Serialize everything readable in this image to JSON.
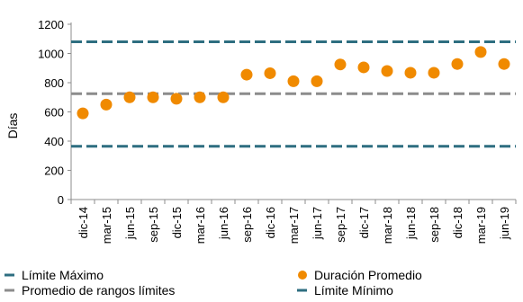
{
  "chart_data": {
    "type": "scatter",
    "title": "",
    "ylabel": "Días",
    "xlabel": "",
    "ylim": [
      0,
      1200
    ],
    "yticks": [
      "0",
      "200",
      "400",
      "600",
      "800",
      "1000",
      "1200"
    ],
    "grid": false,
    "categories": [
      "dic-14",
      "mar-15",
      "jun-15",
      "sep-15",
      "dic-15",
      "mar-16",
      "jun-16",
      "sep-16",
      "dic-16",
      "mar-17",
      "jun-17",
      "sep-17",
      "dic-17",
      "mar-18",
      "jun-18",
      "sep-18",
      "dic-18",
      "mar-19",
      "jun-19"
    ],
    "series": [
      {
        "name": "Duración Promedio",
        "color": "#F08A00",
        "values": [
          590,
          650,
          700,
          700,
          690,
          700,
          700,
          855,
          865,
          810,
          810,
          925,
          905,
          880,
          868,
          868,
          928,
          1010,
          928
        ]
      }
    ],
    "reference_lines": [
      {
        "name": "Límite Máximo",
        "value": 1080,
        "color": "#2E6E80",
        "style": "dashed"
      },
      {
        "name": "Promedio de rangos límites",
        "value": 725,
        "color": "#8C8C8C",
        "style": "dashed"
      },
      {
        "name": "Límite Mínimo",
        "value": 365,
        "color": "#2E6E80",
        "style": "dashed"
      }
    ],
    "legend": {
      "placement": "bottom",
      "items": [
        "Límite Máximo",
        "Duración Promedio",
        "Promedio de rangos límites",
        "Límite Mínimo"
      ]
    }
  }
}
